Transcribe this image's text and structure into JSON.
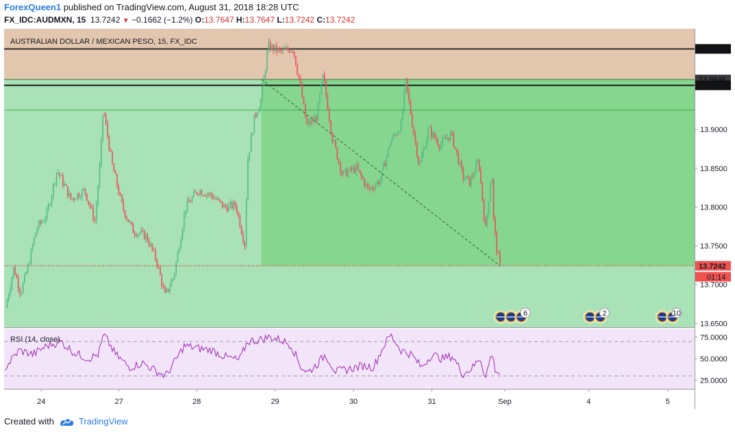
{
  "header": {
    "author": "ForexQueen1",
    "published_text": " published on TradingView.com, August 31, 2018 18:28 UTC",
    "symbol": "FX_IDC:AUDMXN, 15",
    "last": "13.7242",
    "change": "−0.1662 (−1.2%)",
    "o_label": "O:",
    "o_value": "13.7647",
    "h_label": "H:",
    "h_value": "13.7647",
    "l_label": "L:",
    "l_value": "13.7242",
    "c_label": "C:",
    "c_value": "13.7242"
  },
  "footer": {
    "created_with": "Created with",
    "brand": "TradingView"
  },
  "colors": {
    "up": "#53b987",
    "down": "#eb4d5c",
    "resistance_zone": "#e3c6ae",
    "green_zone": "#a8e2b6",
    "dark_green_zone": "#86d68f",
    "rsi_bg": "#f3e5f9",
    "rsi_line": "#9c27b0"
  },
  "chart_data": [
    {
      "type": "candlestick",
      "title": "AUSTRALIAN DOLLAR / MEXICAN PESO, 15, FX_IDC",
      "x_labels": [
        "24",
        "27",
        "28",
        "29",
        "30",
        "31",
        "Sep",
        "4",
        "5"
      ],
      "y_ticks": [
        "13.9000",
        "13.8500",
        "13.8000",
        "13.7500",
        "13.7000",
        "13.6500"
      ],
      "ylim": [
        13.645,
        14.03
      ],
      "price_markers": [
        {
          "label": "14.0040",
          "value": 14.004,
          "style": "black"
        },
        {
          "label": "13.9646",
          "value": 13.9646,
          "style": "dark"
        },
        {
          "label": "13.9570",
          "value": 13.957,
          "style": "black"
        },
        {
          "label": "13.7242",
          "value": 13.7242,
          "style": "red"
        }
      ],
      "countdown": "01:14",
      "zones": [
        {
          "name": "resistance",
          "from": 13.9646,
          "to": 14.03
        },
        {
          "name": "support",
          "from": 13.645,
          "to": 13.9646
        }
      ],
      "horizontal_lines": [
        14.004,
        13.9646,
        13.957,
        13.925,
        13.7242
      ],
      "trend_line": {
        "from": {
          "x": "28 ~20:00",
          "y": 13.965
        },
        "to": {
          "x": "31 ~18:15",
          "y": 13.7242
        }
      },
      "price_path": [
        {
          "t": 0.0,
          "v": 13.67
        },
        {
          "t": 0.012,
          "v": 13.722
        },
        {
          "t": 0.022,
          "v": 13.689
        },
        {
          "t": 0.033,
          "v": 13.724
        },
        {
          "t": 0.045,
          "v": 13.772
        },
        {
          "t": 0.06,
          "v": 13.79
        },
        {
          "t": 0.075,
          "v": 13.848
        },
        {
          "t": 0.095,
          "v": 13.81
        },
        {
          "t": 0.115,
          "v": 13.822
        },
        {
          "t": 0.13,
          "v": 13.782
        },
        {
          "t": 0.138,
          "v": 13.862
        },
        {
          "t": 0.142,
          "v": 13.928
        },
        {
          "t": 0.155,
          "v": 13.855
        },
        {
          "t": 0.17,
          "v": 13.8
        },
        {
          "t": 0.185,
          "v": 13.77
        },
        {
          "t": 0.205,
          "v": 13.762
        },
        {
          "t": 0.22,
          "v": 13.73
        },
        {
          "t": 0.232,
          "v": 13.685
        },
        {
          "t": 0.245,
          "v": 13.712
        },
        {
          "t": 0.262,
          "v": 13.8
        },
        {
          "t": 0.28,
          "v": 13.822
        },
        {
          "t": 0.3,
          "v": 13.815
        },
        {
          "t": 0.318,
          "v": 13.8
        },
        {
          "t": 0.335,
          "v": 13.802
        },
        {
          "t": 0.348,
          "v": 13.752
        },
        {
          "t": 0.352,
          "v": 13.86
        },
        {
          "t": 0.362,
          "v": 13.915
        },
        {
          "t": 0.372,
          "v": 13.94
        },
        {
          "t": 0.382,
          "v": 14.008
        },
        {
          "t": 0.4,
          "v": 14.0
        },
        {
          "t": 0.418,
          "v": 14.005
        },
        {
          "t": 0.428,
          "v": 13.96
        },
        {
          "t": 0.438,
          "v": 13.905
        },
        {
          "t": 0.452,
          "v": 13.915
        },
        {
          "t": 0.462,
          "v": 13.97
        },
        {
          "t": 0.475,
          "v": 13.89
        },
        {
          "t": 0.49,
          "v": 13.842
        },
        {
          "t": 0.51,
          "v": 13.85
        },
        {
          "t": 0.528,
          "v": 13.822
        },
        {
          "t": 0.545,
          "v": 13.835
        },
        {
          "t": 0.56,
          "v": 13.885
        },
        {
          "t": 0.575,
          "v": 13.905
        },
        {
          "t": 0.582,
          "v": 13.962
        },
        {
          "t": 0.592,
          "v": 13.905
        },
        {
          "t": 0.602,
          "v": 13.852
        },
        {
          "t": 0.615,
          "v": 13.9
        },
        {
          "t": 0.632,
          "v": 13.88
        },
        {
          "t": 0.648,
          "v": 13.895
        },
        {
          "t": 0.665,
          "v": 13.84
        },
        {
          "t": 0.675,
          "v": 13.832
        },
        {
          "t": 0.688,
          "v": 13.86
        },
        {
          "t": 0.698,
          "v": 13.77
        },
        {
          "t": 0.707,
          "v": 13.848
        },
        {
          "t": 0.71,
          "v": 13.778
        },
        {
          "t": 0.715,
          "v": 13.742
        },
        {
          "t": 0.719,
          "v": 13.7242
        }
      ]
    },
    {
      "type": "line",
      "title": "RSI (14, close)",
      "y_ticks": [
        "75.0000",
        "50.0000",
        "25.0000"
      ],
      "ylim": [
        15,
        85
      ],
      "bands": [
        70,
        30
      ],
      "values": [
        {
          "t": 0.0,
          "v": 40
        },
        {
          "t": 0.02,
          "v": 60
        },
        {
          "t": 0.04,
          "v": 55
        },
        {
          "t": 0.06,
          "v": 65
        },
        {
          "t": 0.08,
          "v": 70
        },
        {
          "t": 0.1,
          "v": 57
        },
        {
          "t": 0.12,
          "v": 50
        },
        {
          "t": 0.135,
          "v": 55
        },
        {
          "t": 0.143,
          "v": 78
        },
        {
          "t": 0.16,
          "v": 55
        },
        {
          "t": 0.18,
          "v": 40
        },
        {
          "t": 0.2,
          "v": 45
        },
        {
          "t": 0.22,
          "v": 35
        },
        {
          "t": 0.233,
          "v": 30
        },
        {
          "t": 0.245,
          "v": 45
        },
        {
          "t": 0.26,
          "v": 65
        },
        {
          "t": 0.28,
          "v": 62
        },
        {
          "t": 0.3,
          "v": 60
        },
        {
          "t": 0.32,
          "v": 52
        },
        {
          "t": 0.34,
          "v": 48
        },
        {
          "t": 0.352,
          "v": 70
        },
        {
          "t": 0.37,
          "v": 72
        },
        {
          "t": 0.383,
          "v": 75
        },
        {
          "t": 0.4,
          "v": 72
        },
        {
          "t": 0.415,
          "v": 66
        },
        {
          "t": 0.43,
          "v": 40
        },
        {
          "t": 0.44,
          "v": 34
        },
        {
          "t": 0.455,
          "v": 45
        },
        {
          "t": 0.465,
          "v": 55
        },
        {
          "t": 0.48,
          "v": 35
        },
        {
          "t": 0.5,
          "v": 38
        },
        {
          "t": 0.52,
          "v": 42
        },
        {
          "t": 0.535,
          "v": 40
        },
        {
          "t": 0.55,
          "v": 65
        },
        {
          "t": 0.56,
          "v": 78
        },
        {
          "t": 0.575,
          "v": 60
        },
        {
          "t": 0.59,
          "v": 55
        },
        {
          "t": 0.605,
          "v": 40
        },
        {
          "t": 0.62,
          "v": 55
        },
        {
          "t": 0.635,
          "v": 50
        },
        {
          "t": 0.65,
          "v": 53
        },
        {
          "t": 0.665,
          "v": 32
        },
        {
          "t": 0.68,
          "v": 40
        },
        {
          "t": 0.69,
          "v": 52
        },
        {
          "t": 0.698,
          "v": 28
        },
        {
          "t": 0.707,
          "v": 57
        },
        {
          "t": 0.712,
          "v": 38
        },
        {
          "t": 0.719,
          "v": 32
        }
      ]
    }
  ],
  "events": [
    {
      "x_label": "after 31",
      "count": "6"
    },
    {
      "x_label": "4",
      "count": "2"
    },
    {
      "x_label": "5",
      "count": "10"
    }
  ]
}
